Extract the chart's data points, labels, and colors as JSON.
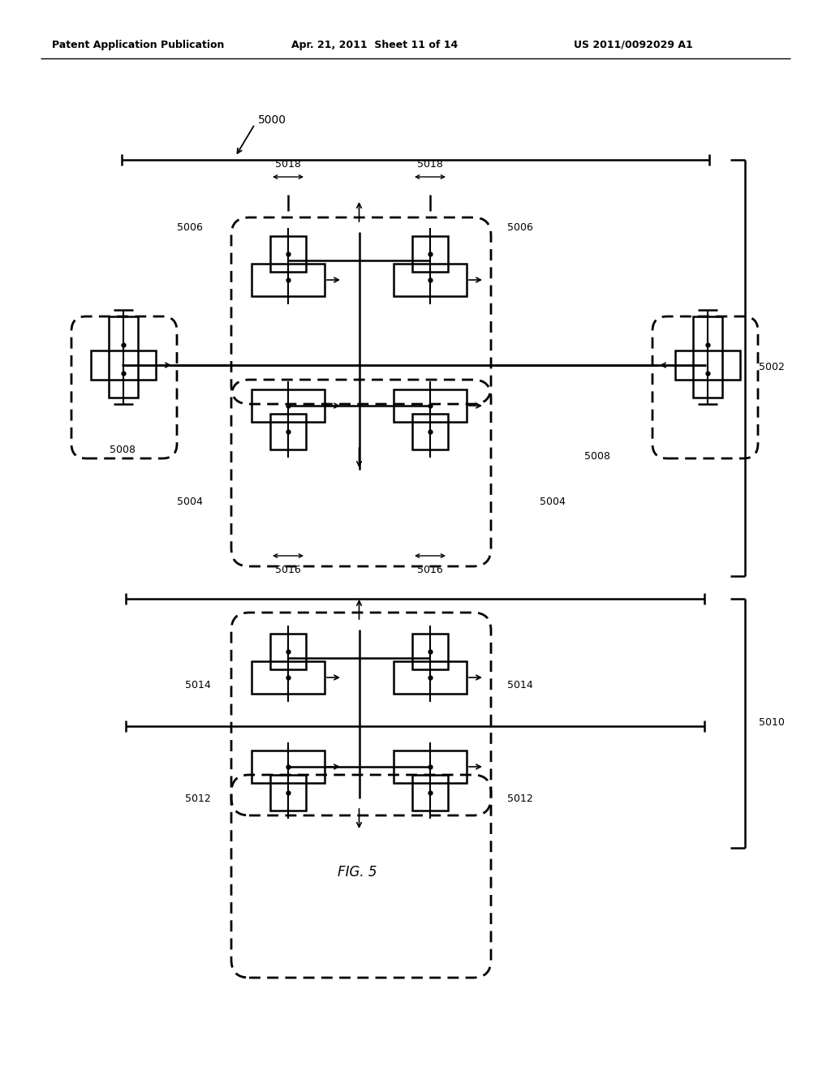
{
  "title": "FIG. 5",
  "header_left": "Patent Application Publication",
  "header_mid": "Apr. 21, 2011  Sheet 11 of 14",
  "header_right": "US 2011/0092029 A1",
  "bg_color": "#ffffff",
  "label_5000": "5000",
  "label_5002": "5002",
  "label_5004a": "5004",
  "label_5004b": "5004",
  "label_5006a": "5006",
  "label_5006b": "5006",
  "label_5008a": "5008",
  "label_5008b": "5008",
  "label_5010": "5010",
  "label_5012a": "5012",
  "label_5012b": "5012",
  "label_5014a": "5014",
  "label_5014b": "5014",
  "label_5016a": "5016",
  "label_5016b": "5016",
  "label_5018a": "5018",
  "label_5018b": "5018"
}
